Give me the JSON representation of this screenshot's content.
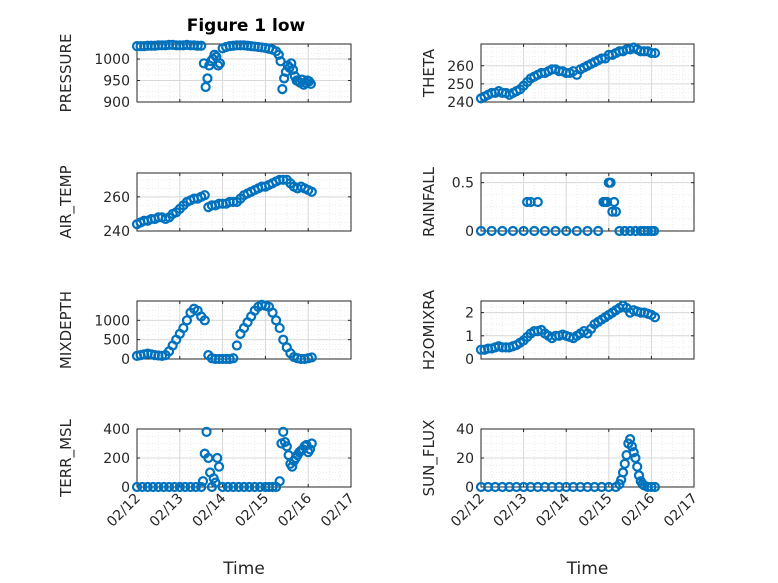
{
  "figure": {
    "title": "Figure 1 low"
  },
  "colors": {
    "marker": "#0072BD",
    "grid_major": "#d9d9d9",
    "grid_minor": "#ececec",
    "axis": "#262626"
  },
  "chart_data": [
    {
      "id": "pressure",
      "type": "scatter",
      "title": "Figure 1 low",
      "xlabel": "",
      "ylabel": "PRESSURE",
      "xlim": [
        "02/12",
        "02/17"
      ],
      "ylim": [
        900,
        1035
      ],
      "yticks": [
        900,
        950,
        1000
      ],
      "grid": true,
      "x": [
        "02/12 00:00",
        "02/12 02:00",
        "02/12 04:00",
        "02/12 06:00",
        "02/12 08:00",
        "02/12 10:00",
        "02/12 12:00",
        "02/12 14:00",
        "02/12 16:00",
        "02/12 18:00",
        "02/12 20:00",
        "02/12 22:00",
        "02/13 00:00",
        "02/13 02:00",
        "02/13 04:00",
        "02/13 06:00",
        "02/13 08:00",
        "02/13 10:00",
        "02/13 12:00",
        "02/13 13:30",
        "02/13 14:30",
        "02/13 15:30",
        "02/13 16:30",
        "02/13 17:30",
        "02/13 18:30",
        "02/13 19:30",
        "02/13 20:30",
        "02/13 21:30",
        "02/13 22:30",
        "02/14 00:00",
        "02/14 02:00",
        "02/14 04:00",
        "02/14 06:00",
        "02/14 08:00",
        "02/14 10:00",
        "02/14 12:00",
        "02/14 14:00",
        "02/14 16:00",
        "02/14 18:00",
        "02/14 20:00",
        "02/14 22:00",
        "02/15 00:00",
        "02/15 02:00",
        "02/15 04:00",
        "02/15 06:00",
        "02/15 07:30",
        "02/15 08:30",
        "02/15 09:30",
        "02/15 10:30",
        "02/15 11:30",
        "02/15 12:30",
        "02/15 13:30",
        "02/15 14:30",
        "02/15 15:30",
        "02/15 16:30",
        "02/15 17:30",
        "02/15 18:30",
        "02/15 19:30",
        "02/15 20:30",
        "02/15 21:30",
        "02/15 22:30",
        "02/15 23:30",
        "02/16 00:30",
        "02/16 01:30"
      ],
      "y": [
        1030,
        1030,
        1030,
        1031,
        1031,
        1031,
        1032,
        1032,
        1032,
        1033,
        1033,
        1032,
        1032,
        1032,
        1033,
        1032,
        1032,
        1031,
        1031,
        990,
        935,
        955,
        985,
        995,
        1000,
        1010,
        1005,
        985,
        990,
        1025,
        1028,
        1030,
        1031,
        1032,
        1032,
        1032,
        1031,
        1030,
        1029,
        1028,
        1027,
        1026,
        1024,
        1022,
        1018,
        1010,
        995,
        930,
        955,
        970,
        985,
        980,
        990,
        975,
        960,
        950,
        948,
        945,
        952,
        940,
        945,
        950,
        948,
        942
      ]
    },
    {
      "id": "theta",
      "type": "scatter",
      "xlabel": "",
      "ylabel": "THETA",
      "xlim": [
        "02/12",
        "02/17"
      ],
      "ylim": [
        240,
        272
      ],
      "yticks": [
        240,
        250,
        260
      ],
      "grid": true,
      "x": [
        "02/12 00:00",
        "02/12 02:00",
        "02/12 04:00",
        "02/12 06:00",
        "02/12 08:00",
        "02/12 10:00",
        "02/12 12:00",
        "02/12 14:00",
        "02/12 16:00",
        "02/12 18:00",
        "02/12 20:00",
        "02/12 22:00",
        "02/13 00:00",
        "02/13 02:00",
        "02/13 04:00",
        "02/13 06:00",
        "02/13 08:00",
        "02/13 10:00",
        "02/13 12:00",
        "02/13 14:00",
        "02/13 16:00",
        "02/13 18:00",
        "02/13 20:00",
        "02/13 22:00",
        "02/14 00:00",
        "02/14 02:00",
        "02/14 04:00",
        "02/14 06:00",
        "02/14 08:00",
        "02/14 10:00",
        "02/14 12:00",
        "02/14 14:00",
        "02/14 16:00",
        "02/14 18:00",
        "02/14 20:00",
        "02/14 22:00",
        "02/15 00:00",
        "02/15 02:00",
        "02/15 04:00",
        "02/15 06:00",
        "02/15 08:00",
        "02/15 10:00",
        "02/15 12:00",
        "02/15 14:00",
        "02/15 16:00",
        "02/15 18:00",
        "02/15 20:00",
        "02/15 22:00",
        "02/16 00:00",
        "02/16 02:00"
      ],
      "y": [
        242,
        243,
        244,
        245,
        245,
        246,
        245,
        245,
        244,
        245,
        246,
        247,
        249,
        251,
        253,
        254,
        255,
        256,
        256,
        257,
        258,
        258,
        257,
        257,
        256,
        256,
        257,
        255,
        258,
        259,
        260,
        261,
        262,
        263,
        264,
        264,
        266,
        266,
        267,
        268,
        268,
        269,
        269,
        270,
        269,
        268,
        268,
        268,
        267,
        267
      ]
    },
    {
      "id": "air_temp",
      "type": "scatter",
      "xlabel": "",
      "ylabel": "AIR_TEMP",
      "xlim": [
        "02/12",
        "02/17"
      ],
      "ylim": [
        240,
        274
      ],
      "yticks": [
        240,
        260
      ],
      "grid": true,
      "x": [
        "02/12 00:00",
        "02/12 02:00",
        "02/12 04:00",
        "02/12 06:00",
        "02/12 08:00",
        "02/12 10:00",
        "02/12 12:00",
        "02/12 14:00",
        "02/12 16:00",
        "02/12 18:00",
        "02/12 20:00",
        "02/12 22:00",
        "02/13 00:00",
        "02/13 02:00",
        "02/13 04:00",
        "02/13 06:00",
        "02/13 08:00",
        "02/13 10:00",
        "02/13 12:00",
        "02/13 14:00",
        "02/13 16:00",
        "02/13 18:00",
        "02/13 20:00",
        "02/13 22:00",
        "02/14 00:00",
        "02/14 02:00",
        "02/14 04:00",
        "02/14 06:00",
        "02/14 08:00",
        "02/14 10:00",
        "02/14 12:00",
        "02/14 14:00",
        "02/14 16:00",
        "02/14 18:00",
        "02/14 20:00",
        "02/14 22:00",
        "02/15 00:00",
        "02/15 02:00",
        "02/15 04:00",
        "02/15 06:00",
        "02/15 08:00",
        "02/15 10:00",
        "02/15 12:00",
        "02/15 14:00",
        "02/15 16:00",
        "02/15 18:00",
        "02/15 20:00",
        "02/15 22:00",
        "02/16 00:00",
        "02/16 02:00"
      ],
      "y": [
        244,
        245,
        246,
        246,
        247,
        247,
        248,
        248,
        247,
        248,
        250,
        251,
        253,
        255,
        257,
        258,
        259,
        259,
        260,
        261,
        254,
        255,
        255,
        256,
        256,
        256,
        257,
        257,
        257,
        259,
        261,
        262,
        263,
        264,
        265,
        266,
        266,
        267,
        268,
        269,
        270,
        270,
        270,
        268,
        266,
        265,
        266,
        265,
        264,
        263
      ]
    },
    {
      "id": "rainfall",
      "type": "scatter",
      "xlabel": "",
      "ylabel": "RAINFALL",
      "xlim": [
        "02/12",
        "02/17"
      ],
      "ylim": [
        0,
        0.6
      ],
      "yticks": [
        0,
        0.5
      ],
      "grid": true,
      "x": [
        "02/12 00:00",
        "02/12 06:00",
        "02/12 12:00",
        "02/12 18:00",
        "02/13 00:00",
        "02/13 02:00",
        "02/13 04:00",
        "02/13 06:00",
        "02/13 08:00",
        "02/13 12:00",
        "02/13 18:00",
        "02/14 00:00",
        "02/14 06:00",
        "02/14 12:00",
        "02/14 18:00",
        "02/14 21:00",
        "02/14 22:00",
        "02/14 23:00",
        "02/15 00:00",
        "02/15 01:00",
        "02/15 02:00",
        "02/15 03:00",
        "02/15 04:00",
        "02/15 06:00",
        "02/15 09:00",
        "02/15 12:00",
        "02/15 15:00",
        "02/15 18:00",
        "02/15 20:00",
        "02/15 22:00",
        "02/16 00:00",
        "02/16 01:30"
      ],
      "y": [
        0,
        0,
        0,
        0,
        0,
        0.3,
        0.3,
        0,
        0.3,
        0,
        0,
        0,
        0,
        0,
        0,
        0.3,
        0.3,
        0.3,
        0.5,
        0.5,
        0.2,
        0.3,
        0.2,
        0,
        0,
        0,
        0,
        0,
        0,
        0,
        0,
        0
      ]
    },
    {
      "id": "mixdepth",
      "type": "scatter",
      "xlabel": "",
      "ylabel": "MIXDEPTH",
      "xlim": [
        "02/12",
        "02/17"
      ],
      "ylim": [
        0,
        1500
      ],
      "yticks": [
        0,
        500,
        1000
      ],
      "grid": true,
      "x": [
        "02/12 00:00",
        "02/12 02:00",
        "02/12 04:00",
        "02/12 06:00",
        "02/12 08:00",
        "02/12 10:00",
        "02/12 12:00",
        "02/12 14:00",
        "02/12 16:00",
        "02/12 18:00",
        "02/12 20:00",
        "02/12 22:00",
        "02/13 00:00",
        "02/13 02:00",
        "02/13 04:00",
        "02/13 06:00",
        "02/13 08:00",
        "02/13 10:00",
        "02/13 12:00",
        "02/13 14:00",
        "02/13 16:00",
        "02/13 18:00",
        "02/13 20:00",
        "02/13 22:00",
        "02/14 00:00",
        "02/14 02:00",
        "02/14 04:00",
        "02/14 06:00",
        "02/14 08:00",
        "02/14 10:00",
        "02/14 12:00",
        "02/14 14:00",
        "02/14 16:00",
        "02/14 18:00",
        "02/14 20:00",
        "02/14 22:00",
        "02/15 00:00",
        "02/15 02:00",
        "02/15 04:00",
        "02/15 06:00",
        "02/15 08:00",
        "02/15 10:00",
        "02/15 12:00",
        "02/15 14:00",
        "02/15 16:00",
        "02/15 18:00",
        "02/15 20:00",
        "02/15 22:00",
        "02/16 00:00",
        "02/16 02:00"
      ],
      "y": [
        80,
        100,
        120,
        140,
        120,
        100,
        90,
        80,
        100,
        200,
        350,
        500,
        650,
        800,
        1000,
        1200,
        1300,
        1250,
        1100,
        1000,
        100,
        20,
        0,
        0,
        0,
        0,
        0,
        20,
        350,
        650,
        800,
        950,
        1100,
        1250,
        1350,
        1400,
        1380,
        1350,
        1200,
        1000,
        800,
        500,
        300,
        150,
        50,
        20,
        0,
        0,
        20,
        40
      ]
    },
    {
      "id": "h2omixra",
      "type": "scatter",
      "xlabel": "",
      "ylabel": "H2OMIXRA",
      "xlim": [
        "02/12",
        "02/17"
      ],
      "ylim": [
        0,
        2.5
      ],
      "yticks": [
        0,
        1,
        2
      ],
      "grid": true,
      "x": [
        "02/12 00:00",
        "02/12 02:00",
        "02/12 04:00",
        "02/12 06:00",
        "02/12 08:00",
        "02/12 10:00",
        "02/12 12:00",
        "02/12 14:00",
        "02/12 16:00",
        "02/12 18:00",
        "02/12 20:00",
        "02/12 22:00",
        "02/13 00:00",
        "02/13 02:00",
        "02/13 04:00",
        "02/13 06:00",
        "02/13 08:00",
        "02/13 10:00",
        "02/13 12:00",
        "02/13 14:00",
        "02/13 16:00",
        "02/13 18:00",
        "02/13 20:00",
        "02/13 22:00",
        "02/14 00:00",
        "02/14 02:00",
        "02/14 04:00",
        "02/14 06:00",
        "02/14 08:00",
        "02/14 10:00",
        "02/14 12:00",
        "02/14 14:00",
        "02/14 16:00",
        "02/14 18:00",
        "02/14 20:00",
        "02/14 22:00",
        "02/15 00:00",
        "02/15 02:00",
        "02/15 04:00",
        "02/15 06:00",
        "02/15 08:00",
        "02/15 10:00",
        "02/15 12:00",
        "02/15 14:00",
        "02/15 16:00",
        "02/15 18:00",
        "02/15 20:00",
        "02/15 22:00",
        "02/16 00:00",
        "02/16 02:00"
      ],
      "y": [
        0.4,
        0.4,
        0.45,
        0.45,
        0.5,
        0.55,
        0.5,
        0.5,
        0.5,
        0.55,
        0.6,
        0.7,
        0.8,
        0.95,
        1.1,
        1.2,
        1.2,
        1.25,
        1.1,
        1.0,
        0.9,
        1.0,
        1.0,
        1.05,
        1.0,
        0.95,
        0.9,
        1.0,
        1.1,
        1.2,
        1.1,
        1.3,
        1.5,
        1.6,
        1.7,
        1.8,
        1.9,
        2.0,
        2.1,
        2.2,
        2.3,
        2.2,
        2.0,
        2.1,
        2.05,
        2.0,
        2.0,
        1.95,
        1.9,
        1.8
      ]
    },
    {
      "id": "terr_msl",
      "type": "scatter",
      "xlabel": "Time",
      "ylabel": "TERR_MSL",
      "xlim": [
        "02/12",
        "02/17"
      ],
      "ylim": [
        0,
        400
      ],
      "yticks": [
        0,
        200,
        400
      ],
      "grid": true,
      "xticks": [
        "02/12",
        "02/13",
        "02/14",
        "02/15",
        "02/16",
        "02/17"
      ],
      "x": [
        "02/12 00:00",
        "02/12 03:00",
        "02/12 06:00",
        "02/12 09:00",
        "02/12 12:00",
        "02/12 15:00",
        "02/12 18:00",
        "02/12 21:00",
        "02/13 00:00",
        "02/13 03:00",
        "02/13 06:00",
        "02/13 09:00",
        "02/13 12:00",
        "02/13 13:00",
        "02/13 14:00",
        "02/13 15:00",
        "02/13 16:00",
        "02/13 17:00",
        "02/13 18:00",
        "02/13 19:00",
        "02/13 20:00",
        "02/13 21:00",
        "02/13 22:00",
        "02/14 00:00",
        "02/14 03:00",
        "02/14 06:00",
        "02/14 09:00",
        "02/14 12:00",
        "02/14 15:00",
        "02/14 18:00",
        "02/14 21:00",
        "02/15 00:00",
        "02/15 02:00",
        "02/15 04:00",
        "02/15 06:00",
        "02/15 08:00",
        "02/15 09:00",
        "02/15 10:00",
        "02/15 11:00",
        "02/15 12:00",
        "02/15 13:00",
        "02/15 14:00",
        "02/15 15:00",
        "02/15 16:00",
        "02/15 17:00",
        "02/15 18:00",
        "02/15 19:00",
        "02/15 20:00",
        "02/15 21:00",
        "02/15 22:00",
        "02/15 23:00",
        "02/16 00:00",
        "02/16 01:00",
        "02/16 02:00"
      ],
      "y": [
        0,
        0,
        0,
        0,
        0,
        0,
        0,
        0,
        0,
        0,
        0,
        0,
        0,
        40,
        230,
        380,
        200,
        100,
        0,
        60,
        30,
        200,
        140,
        0,
        0,
        0,
        0,
        0,
        0,
        0,
        0,
        0,
        0,
        0,
        0,
        40,
        300,
        380,
        310,
        280,
        220,
        160,
        140,
        180,
        200,
        220,
        240,
        250,
        260,
        280,
        290,
        240,
        260,
        300
      ]
    },
    {
      "id": "sun_flux",
      "type": "scatter",
      "xlabel": "Time",
      "ylabel": "SUN_FLUX",
      "xlim": [
        "02/12",
        "02/17"
      ],
      "ylim": [
        0,
        40
      ],
      "yticks": [
        0,
        20,
        40
      ],
      "grid": true,
      "xticks": [
        "02/12",
        "02/13",
        "02/14",
        "02/15",
        "02/16",
        "02/17"
      ],
      "x": [
        "02/12 00:00",
        "02/12 04:00",
        "02/12 08:00",
        "02/12 12:00",
        "02/12 16:00",
        "02/12 20:00",
        "02/13 00:00",
        "02/13 04:00",
        "02/13 08:00",
        "02/13 12:00",
        "02/13 16:00",
        "02/13 20:00",
        "02/14 00:00",
        "02/14 04:00",
        "02/14 08:00",
        "02/14 12:00",
        "02/14 16:00",
        "02/14 20:00",
        "02/15 00:00",
        "02/15 04:00",
        "02/15 06:00",
        "02/15 07:00",
        "02/15 08:00",
        "02/15 09:00",
        "02/15 10:00",
        "02/15 11:00",
        "02/15 12:00",
        "02/15 13:00",
        "02/15 14:00",
        "02/15 15:00",
        "02/15 16:00",
        "02/15 17:00",
        "02/15 18:00",
        "02/15 19:00",
        "02/15 20:00",
        "02/15 22:00",
        "02/16 00:00",
        "02/16 02:00"
      ],
      "y": [
        0,
        0,
        0,
        0,
        0,
        0,
        0,
        0,
        0,
        0,
        0,
        0,
        0,
        0,
        0,
        0,
        0,
        0,
        0,
        0,
        2,
        5,
        10,
        16,
        22,
        30,
        33,
        28,
        24,
        20,
        14,
        8,
        4,
        2,
        1,
        0,
        0,
        0
      ]
    }
  ]
}
